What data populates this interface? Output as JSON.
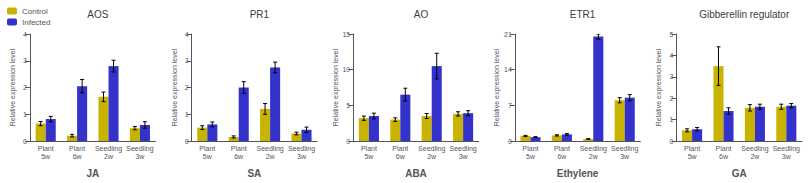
{
  "chart_data": [
    {
      "type": "bar",
      "title": "AOS",
      "xlabel": "JA",
      "ylabel": "Relative expression level",
      "categories": [
        "Plant\n5w",
        "Plant\n6w",
        "Seedling\n2w",
        "Seedling\n3w"
      ],
      "series": [
        {
          "name": "Control",
          "color": "#c8b400",
          "values": [
            0.65,
            0.2,
            1.65,
            0.48
          ],
          "errors": [
            0.08,
            0.05,
            0.18,
            0.06
          ]
        },
        {
          "name": "Infected",
          "color": "#3333cc",
          "values": [
            0.82,
            2.05,
            2.8,
            0.6
          ],
          "errors": [
            0.1,
            0.25,
            0.22,
            0.12
          ]
        }
      ],
      "ylim": [
        0,
        4
      ],
      "yticks": [
        0,
        1,
        2,
        3,
        4
      ],
      "grid": false,
      "legend": "upper left"
    },
    {
      "type": "bar",
      "title": "PR1",
      "xlabel": "SA",
      "ylabel": "Relative expression level",
      "categories": [
        "Plant\n5w",
        "Plant\n6w",
        "Seedling\n2w",
        "Seedling\n3w"
      ],
      "series": [
        {
          "name": "Control",
          "color": "#c8b400",
          "values": [
            0.5,
            0.15,
            1.2,
            0.28
          ],
          "errors": [
            0.07,
            0.04,
            0.2,
            0.05
          ]
        },
        {
          "name": "Infected",
          "color": "#3333cc",
          "values": [
            0.62,
            2.0,
            2.75,
            0.42
          ],
          "errors": [
            0.09,
            0.22,
            0.2,
            0.1
          ]
        }
      ],
      "ylim": [
        0,
        4
      ],
      "yticks": [
        0,
        1,
        2,
        3,
        4
      ],
      "grid": false
    },
    {
      "type": "bar",
      "title": "AO",
      "xlabel": "ABA",
      "ylabel": "Relative expression level",
      "categories": [
        "Plant\n5w",
        "Plant\n6w",
        "Seedling\n2w",
        "Seedling\n3w"
      ],
      "series": [
        {
          "name": "Control",
          "color": "#c8b400",
          "values": [
            3.2,
            3.0,
            3.5,
            3.8
          ],
          "errors": [
            0.3,
            0.25,
            0.35,
            0.3
          ]
        },
        {
          "name": "Infected",
          "color": "#3333cc",
          "values": [
            3.5,
            6.5,
            10.5,
            3.9
          ],
          "errors": [
            0.4,
            0.9,
            1.8,
            0.35
          ]
        }
      ],
      "ylim": [
        0,
        15
      ],
      "yticks": [
        0,
        5,
        10,
        15
      ],
      "grid": false
    },
    {
      "type": "bar",
      "title": "ETR1",
      "xlabel": "Ethylene",
      "ylabel": "Relative expression level",
      "categories": [
        "Plant\n5w",
        "Plant\n6w",
        "Seedling\n2w",
        "Seedling\n3w"
      ],
      "series": [
        {
          "name": "Control",
          "color": "#c8b400",
          "values": [
            1.0,
            1.1,
            0.4,
            8.0
          ],
          "errors": [
            0.1,
            0.12,
            0.06,
            0.5
          ]
        },
        {
          "name": "Infected",
          "color": "#3333cc",
          "values": [
            0.75,
            1.3,
            20.5,
            8.5
          ],
          "errors": [
            0.1,
            0.15,
            0.5,
            0.6
          ]
        }
      ],
      "ylim": [
        0,
        21
      ],
      "yticks": [
        0,
        7,
        14,
        21
      ],
      "grid": false
    },
    {
      "type": "bar",
      "title": "Gibberellin regulator",
      "xlabel": "GA",
      "ylabel": "Relative expression level",
      "categories": [
        "Plant\n5w",
        "Plant\n6w",
        "Seedling\n2w",
        "Seedling\n3w"
      ],
      "series": [
        {
          "name": "Control",
          "color": "#c8b400",
          "values": [
            0.5,
            3.5,
            1.55,
            1.6
          ],
          "errors": [
            0.07,
            0.9,
            0.15,
            0.12
          ]
        },
        {
          "name": "Infected",
          "color": "#3333cc",
          "values": [
            0.55,
            1.4,
            1.6,
            1.65
          ],
          "errors": [
            0.08,
            0.15,
            0.12,
            0.1
          ]
        }
      ],
      "ylim": [
        0,
        5
      ],
      "yticks": [
        0,
        1,
        2,
        3,
        4,
        5
      ],
      "grid": false
    }
  ]
}
